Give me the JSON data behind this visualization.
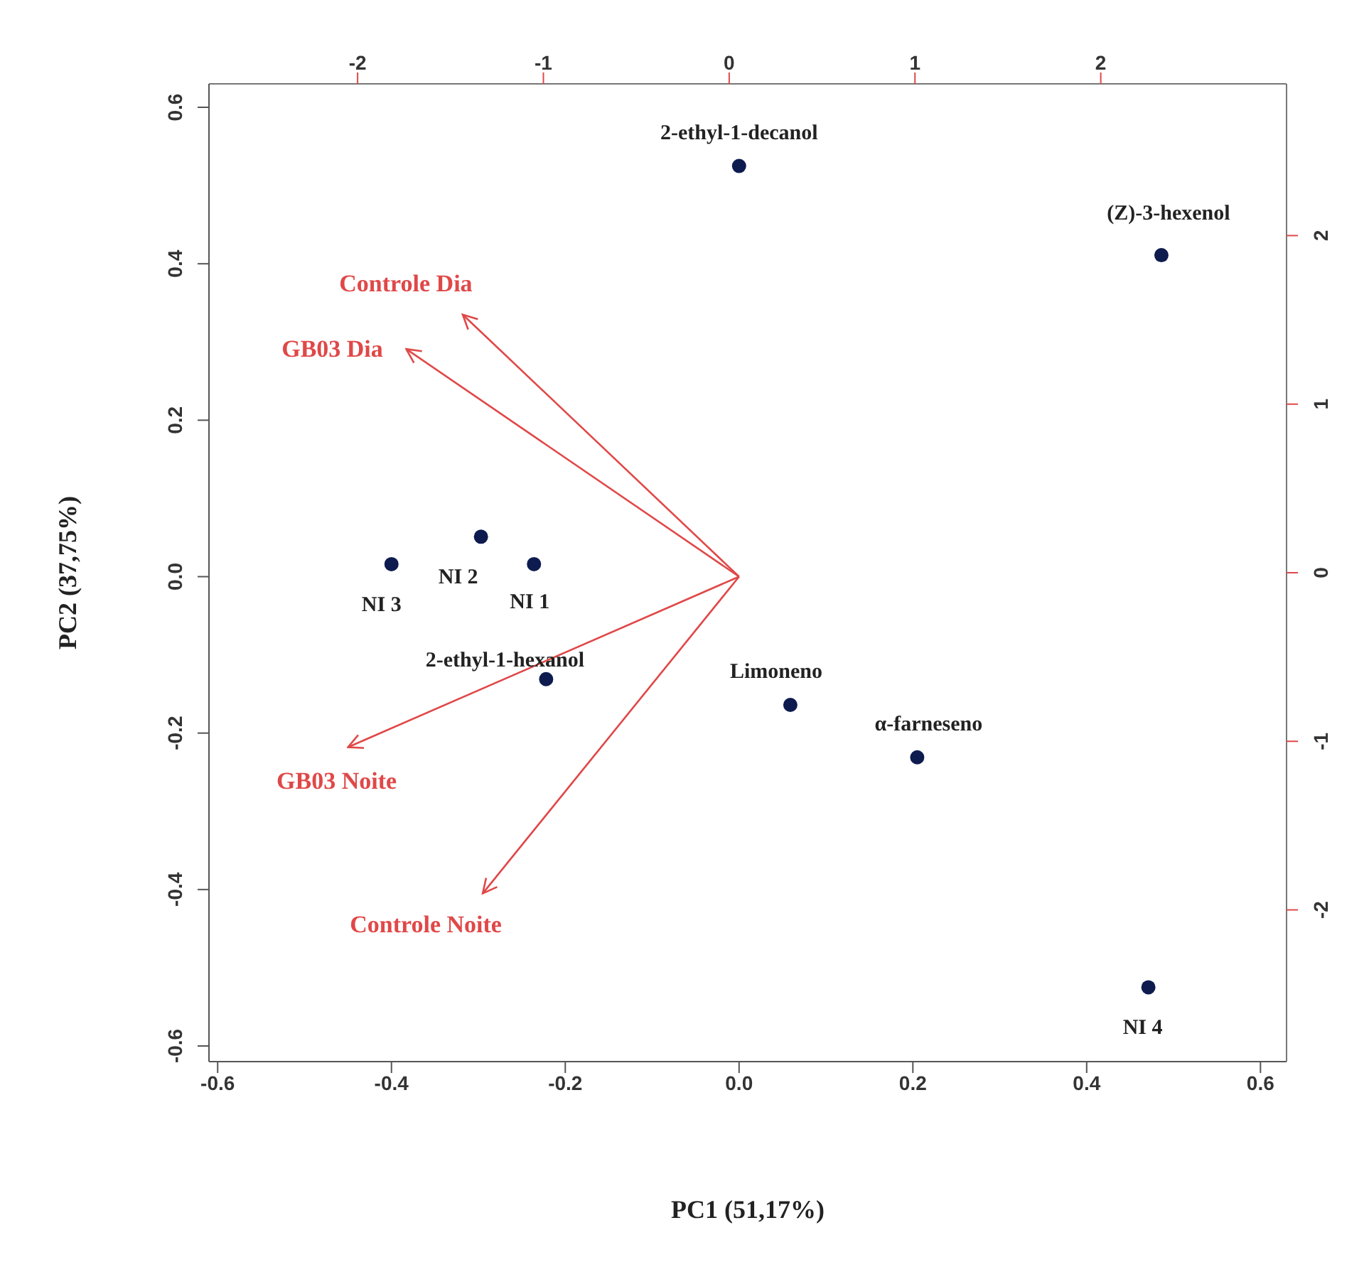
{
  "chart_data": {
    "type": "scatter",
    "xlabel": "PC1 (51,17%)",
    "ylabel": "PC2 (37,75%)",
    "xlim": [
      -0.61,
      0.63
    ],
    "ylim": [
      -0.62,
      0.63
    ],
    "xticks": [
      -0.6,
      -0.4,
      -0.2,
      {
        "value": 0,
        "label": "0.0"
      },
      0.2,
      0.4,
      0.6
    ],
    "yticks": [
      -0.6,
      -0.4,
      -0.2,
      {
        "value": 0,
        "label": "0.0"
      },
      0.2,
      0.4,
      0.6
    ],
    "x2lim": [
      -2.8,
      3.0
    ],
    "y2lim": [
      -2.9,
      2.9
    ],
    "x2ticks": [
      -2,
      -1,
      0,
      1,
      2
    ],
    "y2ticks": [
      -2,
      -1,
      0,
      1,
      2
    ],
    "grid": false,
    "marker": "circle",
    "series": [
      {
        "name": "2-ethyl-1-decanol",
        "color": "#0d1b4f",
        "x": [
          0.0
        ],
        "values": [
          0.525
        ]
      },
      {
        "name": "(Z)-3-hexenol",
        "color": "#0d1b4f",
        "x": [
          0.486
        ],
        "values": [
          0.411
        ]
      },
      {
        "name": "NI 3",
        "color": "#0d1b4f",
        "x": [
          -0.4
        ],
        "values": [
          0.016
        ]
      },
      {
        "name": "NI 2",
        "color": "#0d1b4f",
        "x": [
          -0.297
        ],
        "values": [
          0.051
        ]
      },
      {
        "name": "NI 1",
        "color": "#0d1b4f",
        "x": [
          -0.236
        ],
        "values": [
          0.016
        ]
      },
      {
        "name": "2-ethyl-1-hexanol",
        "color": "#0d1b4f",
        "x": [
          -0.222
        ],
        "values": [
          -0.131
        ]
      },
      {
        "name": "Limoneno",
        "color": "#0d1b4f",
        "x": [
          0.059
        ],
        "values": [
          -0.164
        ]
      },
      {
        "name": "α-farneseno",
        "color": "#0d1b4f",
        "x": [
          0.205
        ],
        "values": [
          -0.231
        ]
      },
      {
        "name": "NI 4",
        "color": "#0d1b4f",
        "x": [
          0.471
        ],
        "values": [
          -0.525
        ]
      },
      {
        "type": "line",
        "marker": "none",
        "name": "Controle Dia",
        "color": "#e04848",
        "x": [
          0,
          -0.318
        ],
        "values": [
          0,
          0.335
        ]
      },
      {
        "type": "line",
        "marker": "none",
        "name": "GB03 Dia",
        "color": "#e04848",
        "x": [
          0,
          -0.383
        ],
        "values": [
          0,
          0.291
        ]
      },
      {
        "type": "line",
        "marker": "none",
        "name": "GB03 Noite",
        "color": "#e04848",
        "x": [
          0,
          -0.45
        ],
        "values": [
          0,
          -0.218
        ]
      },
      {
        "type": "line",
        "marker": "none",
        "name": "Controle Noite",
        "color": "#e04848",
        "x": [
          0,
          -0.295
        ],
        "values": [
          0,
          -0.405
        ]
      }
    ]
  }
}
